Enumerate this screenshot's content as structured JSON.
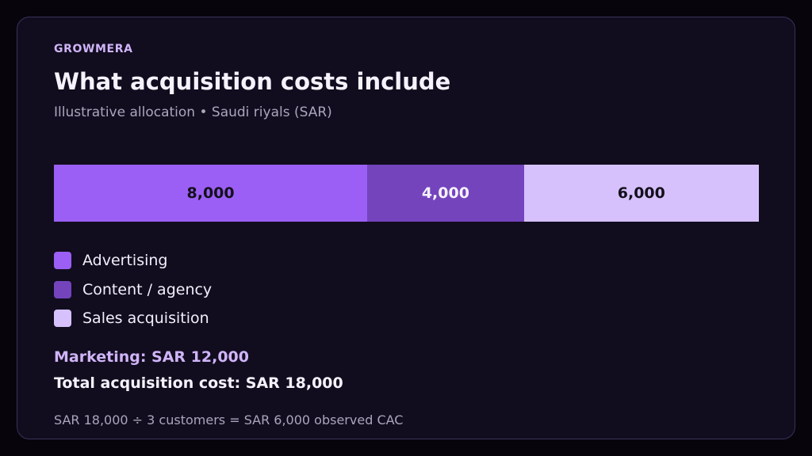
{
  "brand": "GROWMERA",
  "title": "What acquisition costs include",
  "subtitle": "Illustrative allocation • Saudi riyals (SAR)",
  "chart_data": {
    "type": "bar",
    "orientation": "horizontal-stacked",
    "categories": [
      "Advertising",
      "Content / agency",
      "Sales acquisition"
    ],
    "values": [
      8000,
      4000,
      6000
    ],
    "value_labels": [
      "8,000",
      "4,000",
      "6,000"
    ],
    "colors": [
      "#9b5ff5",
      "#7444bd",
      "#d6c1fd"
    ],
    "label_colors": [
      "#14101c",
      "#f6f2fc",
      "#14101c"
    ],
    "legend": "below-left"
  },
  "legend": {
    "items": [
      {
        "label": "Advertising",
        "color": "#9b5ff5"
      },
      {
        "label": "Content / agency",
        "color": "#7444bd"
      },
      {
        "label": "Sales acquisition",
        "color": "#d6c1fd"
      }
    ]
  },
  "summary": {
    "marketing": "Marketing: SAR 12,000",
    "total": "Total acquisition cost: SAR 18,000",
    "note": "SAR 18,000 ÷ 3 customers = SAR 6,000 observed CAC"
  }
}
